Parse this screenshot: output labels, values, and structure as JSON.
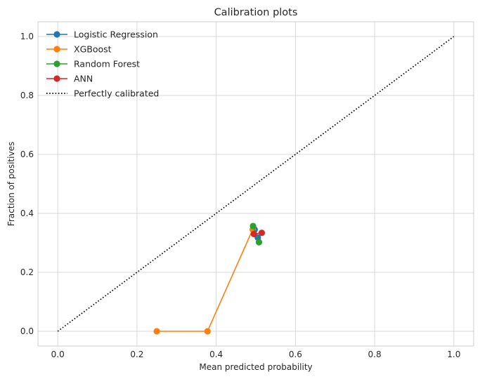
{
  "chart_data": {
    "type": "line",
    "title": "Calibration plots",
    "xlabel": "Mean predicted probability",
    "ylabel": "Fraction of positives",
    "xlim": [
      -0.05,
      1.05
    ],
    "ylim": [
      -0.05,
      1.05
    ],
    "xticks": [
      0.0,
      0.2,
      0.4,
      0.6,
      0.8,
      1.0
    ],
    "yticks": [
      0.0,
      0.2,
      0.4,
      0.6,
      0.8,
      1.0
    ],
    "xtick_labels": [
      "0.0",
      "0.2",
      "0.4",
      "0.6",
      "0.8",
      "1.0"
    ],
    "ytick_labels": [
      "0.0",
      "0.2",
      "0.4",
      "0.6",
      "0.8",
      "1.0"
    ],
    "grid": true,
    "legend_position": "top-left",
    "series": [
      {
        "name": "Logistic Regression",
        "color": "#1f77b4",
        "marker": "circle",
        "linestyle": "solid",
        "x": [
          0.497,
          0.505
        ],
        "y": [
          0.345,
          0.318
        ]
      },
      {
        "name": "XGBoost",
        "color": "#ff7f0e",
        "marker": "circle",
        "linestyle": "solid",
        "x": [
          0.25,
          0.378,
          0.492
        ],
        "y": [
          0.0,
          0.0,
          0.345
        ]
      },
      {
        "name": "Random Forest",
        "color": "#2ca02c",
        "marker": "circle",
        "linestyle": "solid",
        "x": [
          0.493,
          0.508
        ],
        "y": [
          0.357,
          0.302
        ]
      },
      {
        "name": "ANN",
        "color": "#d62728",
        "marker": "circle",
        "linestyle": "solid",
        "x": [
          0.495,
          0.515
        ],
        "y": [
          0.33,
          0.334
        ]
      },
      {
        "name": "Perfectly calibrated",
        "color": "#000000",
        "marker": "none",
        "linestyle": "dotted",
        "x": [
          0.0,
          1.0
        ],
        "y": [
          0.0,
          1.0
        ]
      }
    ]
  }
}
